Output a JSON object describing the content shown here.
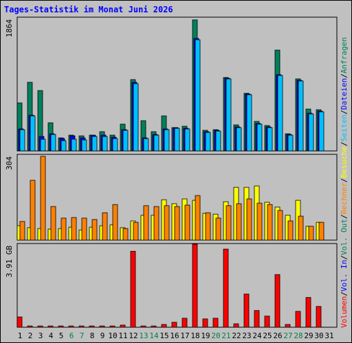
{
  "chart_data": [
    {
      "type": "bar",
      "title": "Tages-Statistik im Monat Juni 2026",
      "ylim": [
        0,
        1864
      ],
      "yticks": [
        1864
      ],
      "series": [
        {
          "name": "Anfragen",
          "color": "#00805c",
          "values": [
            669,
            956,
            841,
            392,
            182,
            220,
            210,
            220,
            268,
            220,
            373,
            994,
            421,
            268,
            488,
            325,
            344,
            1826,
            287,
            296,
            1023,
            363,
            803,
            411,
            354,
            1405,
            239,
            1004,
            583,
            574,
            null
          ]
        },
        {
          "name": "Dateien",
          "color": "#0000ff",
          "values": [
            306,
            498,
            201,
            239,
            172,
            210,
            182,
            220,
            220,
            191,
            296,
            956,
            182,
            229,
            306,
            325,
            315,
            1568,
            268,
            287,
            1013,
            335,
            793,
            382,
            335,
            1062,
            229,
            984,
            526,
            555,
            null
          ]
        },
        {
          "name": "Seiten",
          "color": "#00c0ff",
          "values": [
            296,
            488,
            163,
            229,
            143,
            163,
            153,
            201,
            201,
            172,
            287,
            937,
            172,
            220,
            296,
            315,
            306,
            1549,
            258,
            277,
            1004,
            325,
            784,
            373,
            325,
            1052,
            220,
            975,
            516,
            545,
            null
          ]
        }
      ]
    },
    {
      "type": "bar",
      "ylim": [
        0,
        304
      ],
      "yticks": [
        304
      ],
      "series": [
        {
          "name": "Besuche",
          "color": "#ffff00",
          "values": [
            51,
            44,
            41,
            39,
            41,
            46,
            36,
            46,
            51,
            54,
            44,
            68,
            88,
            88,
            143,
            129,
            146,
            141,
            95,
            92,
            136,
            187,
            187,
            192,
            134,
            117,
            88,
            141,
            49,
            63,
            null
          ]
        },
        {
          "name": "Rechner",
          "color": "#ff8000",
          "values": [
            66,
            212,
            297,
            119,
            78,
            80,
            78,
            73,
            97,
            126,
            41,
            63,
            122,
            119,
            122,
            119,
            124,
            158,
            97,
            78,
            122,
            129,
            146,
            131,
            126,
            105,
            68,
            85,
            49,
            63,
            null
          ]
        }
      ]
    },
    {
      "type": "bar",
      "ylim": [
        0,
        3.91
      ],
      "yticks": [
        {
          "value": 3.91,
          "label": "3.91 GB"
        }
      ],
      "categories": [
        "1",
        "2",
        "3",
        "4",
        "5",
        "6",
        "7",
        "8",
        "9",
        "10",
        "11",
        "12",
        "13",
        "14",
        "15",
        "16",
        "17",
        "18",
        "19",
        "20",
        "21",
        "22",
        "23",
        "24",
        "25",
        "26",
        "27",
        "28",
        "29",
        "30",
        "31"
      ],
      "highlight_categories": [
        5,
        6,
        12,
        13,
        19,
        20,
        26,
        27
      ],
      "highlight_color": "#008040",
      "category_color": "#000000",
      "series": [
        {
          "name": "Volumen",
          "color": "#ff0000",
          "values": [
            0.48,
            0.06,
            0.06,
            0.06,
            0.06,
            0.06,
            0.06,
            0.06,
            0.06,
            0.06,
            0.1,
            3.55,
            0.06,
            0.06,
            0.13,
            0.23,
            0.42,
            3.88,
            0.39,
            0.42,
            3.65,
            0.16,
            1.55,
            0.78,
            0.52,
            2.46,
            0.13,
            0.74,
            1.39,
            0.97,
            null
          ]
        }
      ],
      "legend_extra": [
        {
          "name": "Vol. In",
          "color": "#0000ff"
        },
        {
          "name": "Vol. Out",
          "color": "#00805c"
        }
      ],
      "legend_separator": "/"
    }
  ]
}
